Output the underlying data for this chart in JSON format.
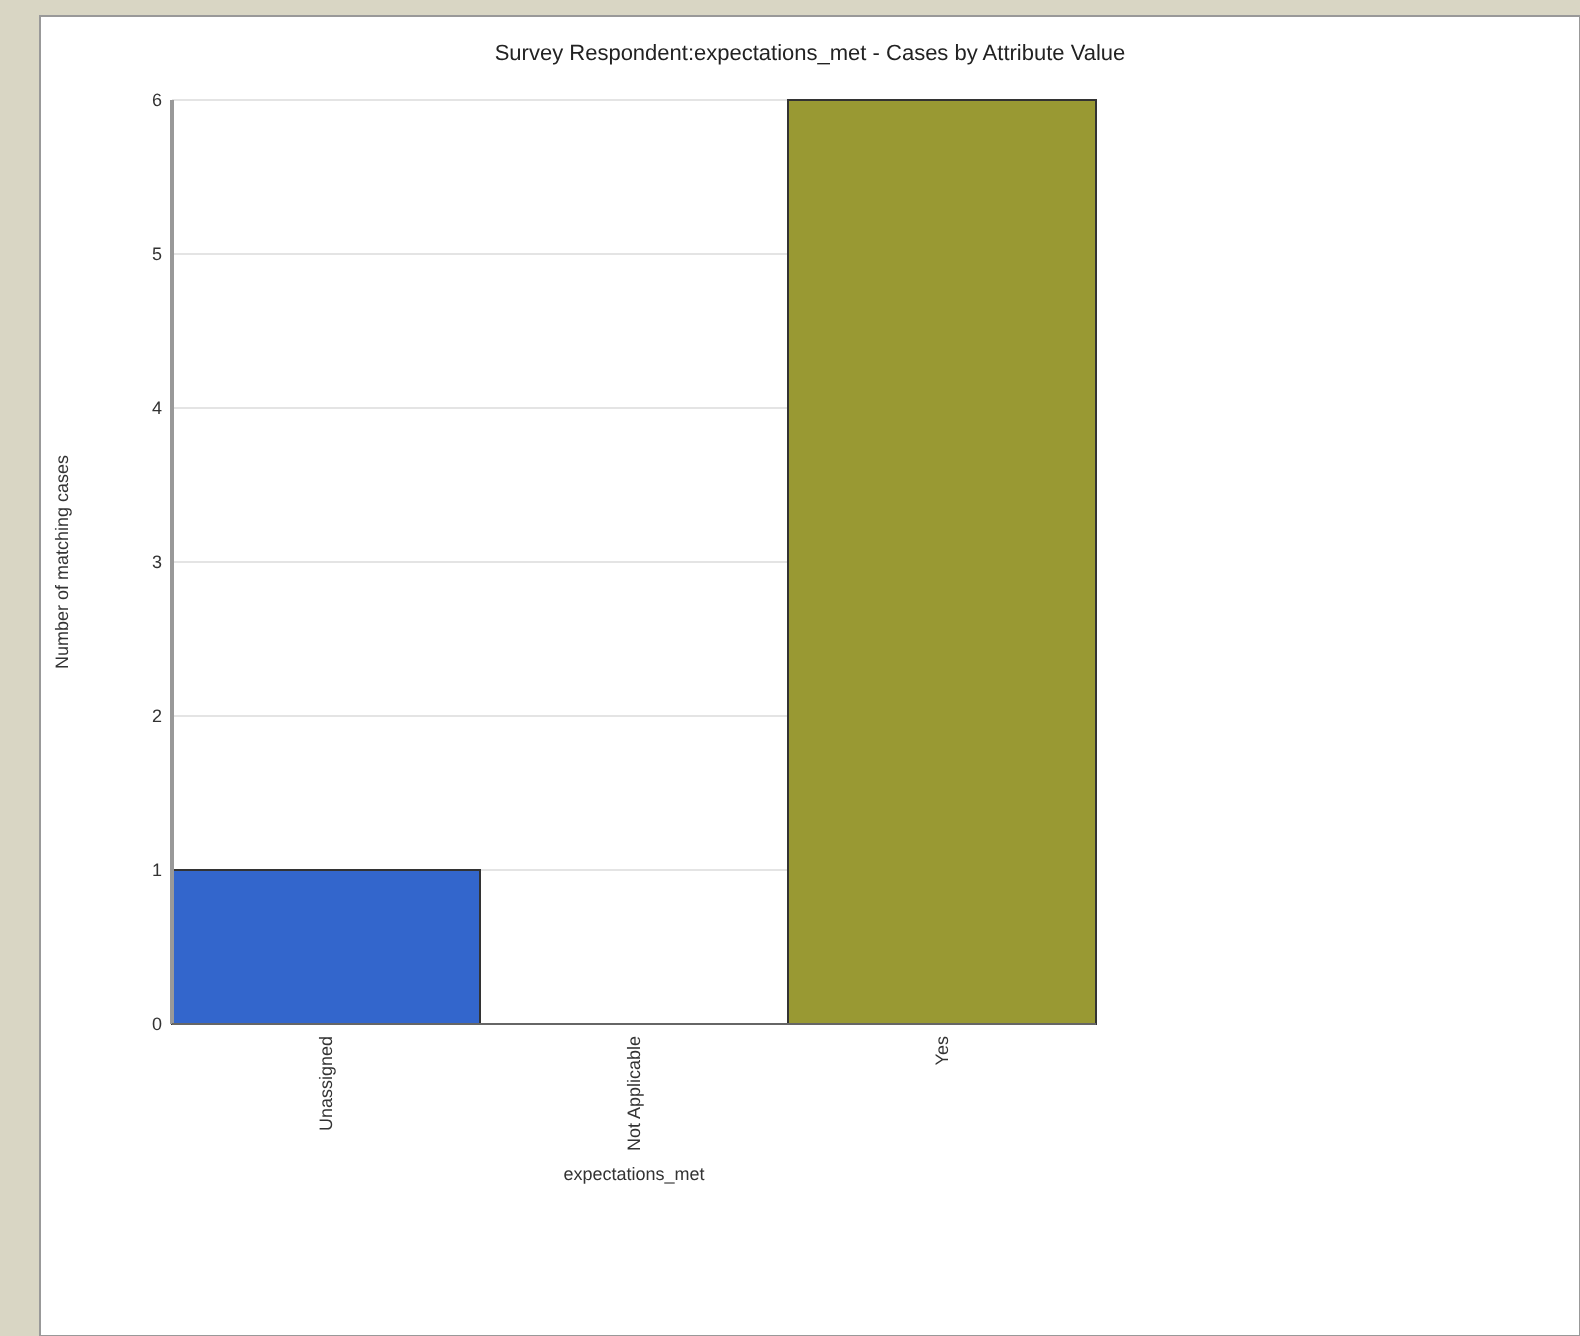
{
  "chart_data": {
    "type": "bar",
    "title": "Survey Respondent:expectations_met - Cases by Attribute Value",
    "xlabel": "expectations_met",
    "ylabel": "Number of matching cases",
    "categories": [
      "Unassigned",
      "Not Applicable",
      "Yes"
    ],
    "values": [
      1,
      0,
      6
    ],
    "colors": [
      "#3366cc",
      null,
      "#999933"
    ],
    "ylim": [
      0,
      6
    ],
    "yticks": [
      0,
      1,
      2,
      3,
      4,
      5,
      6
    ],
    "grid": "y"
  }
}
